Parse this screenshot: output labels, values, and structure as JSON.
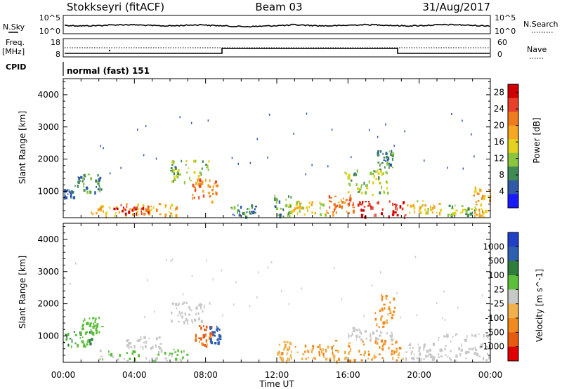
{
  "header": {
    "radar": "Stokkseyri (fitACF)",
    "beam": "Beam 03",
    "date": "31/Aug/2017"
  },
  "panels": {
    "nsky": {
      "label": "N.Sky",
      "ticks": [
        "10^5",
        "10^0"
      ],
      "right_ticks": [
        "10^5",
        "10^0"
      ],
      "right_label": "N.Search"
    },
    "freq": {
      "label_1": "Freq.",
      "label_2": "[MHz]",
      "ticks": [
        "18",
        "8"
      ],
      "right_ticks": [
        "60",
        "0"
      ],
      "right_label": "Nave"
    },
    "cpid": {
      "label": "CPID",
      "value": "normal (fast) 151"
    }
  },
  "colors": {
    "power_scale": [
      "#1a1aff",
      "#2e5aa8",
      "#3f8a55",
      "#8cc63f",
      "#e6d21e",
      "#f5a623",
      "#f07b1a",
      "#e8402a",
      "#d00000"
    ],
    "velocity_scale": [
      "#2040c8",
      "#2f5fb0",
      "#2e7d3a",
      "#5bbf3a",
      "#c8c8c8",
      "#f2b04a",
      "#f08a1c",
      "#e85a10",
      "#e00000"
    ]
  },
  "chart_data": [
    {
      "type": "heatmap",
      "title": "",
      "xlabel": "",
      "ylabel": "Slant Range [km]",
      "x_ticks": [
        "00:00",
        "04:00",
        "08:00",
        "12:00",
        "16:00",
        "20:00",
        "00:00"
      ],
      "y_ticks": [
        "1000",
        "2000",
        "3000",
        "4000"
      ],
      "ylim": [
        180,
        4500
      ],
      "colorbar": {
        "label": "Power [dB]",
        "ticks": [
          "4",
          "8",
          "12",
          "16",
          "20",
          "24",
          "28"
        ],
        "range": [
          0,
          30
        ]
      },
      "patches": [
        {
          "t0": 0.0,
          "t1": 0.6,
          "r0": 830,
          "r1": 1080,
          "value": 6
        },
        {
          "t0": 0.6,
          "t1": 2.2,
          "r0": 1000,
          "r1": 1550,
          "value": 8
        },
        {
          "t0": 1.5,
          "t1": 6.5,
          "r0": 240,
          "r1": 650,
          "value": 18
        },
        {
          "t0": 2.8,
          "t1": 4.8,
          "r0": 330,
          "r1": 620,
          "value": 26
        },
        {
          "t0": 6.0,
          "t1": 8.2,
          "r0": 1300,
          "r1": 2000,
          "value": 12
        },
        {
          "t0": 7.2,
          "t1": 8.8,
          "r0": 700,
          "r1": 1400,
          "value": 21
        },
        {
          "t0": 9.4,
          "t1": 10.8,
          "r0": 240,
          "r1": 600,
          "value": 8
        },
        {
          "t0": 11.8,
          "t1": 12.8,
          "r0": 240,
          "r1": 900,
          "value": 10
        },
        {
          "t0": 12.6,
          "t1": 14.8,
          "r0": 300,
          "r1": 750,
          "value": 15
        },
        {
          "t0": 14.8,
          "t1": 16.5,
          "r0": 320,
          "r1": 900,
          "value": 22
        },
        {
          "t0": 16.5,
          "t1": 19.2,
          "r0": 230,
          "r1": 720,
          "value": 27
        },
        {
          "t0": 15.8,
          "t1": 18.2,
          "r0": 900,
          "r1": 1700,
          "value": 12
        },
        {
          "t0": 17.5,
          "t1": 18.5,
          "r0": 1700,
          "r1": 2300,
          "value": 8
        },
        {
          "t0": 19.3,
          "t1": 21.2,
          "r0": 350,
          "r1": 750,
          "value": 16
        },
        {
          "t0": 21.5,
          "t1": 23.2,
          "r0": 260,
          "r1": 600,
          "value": 12
        },
        {
          "t0": 23.0,
          "t1": 24.0,
          "r0": 230,
          "r1": 1200,
          "value": 18
        }
      ]
    },
    {
      "type": "heatmap",
      "title": "",
      "xlabel": "Time UT",
      "ylabel": "Slant Range [km]",
      "x_ticks": [
        "00:00",
        "04:00",
        "08:00",
        "12:00",
        "16:00",
        "20:00",
        "00:00"
      ],
      "y_ticks": [
        "1000",
        "2000",
        "3000",
        "4000"
      ],
      "ylim": [
        180,
        4500
      ],
      "colorbar": {
        "label": "Velocity [m s^-1]",
        "ticks": [
          "1000",
          "500",
          "100",
          "25",
          "-25",
          "-100",
          "-500",
          "-1000"
        ],
        "range": [
          -1000,
          1000
        ]
      },
      "patches": [
        {
          "t0": 0.0,
          "t1": 1.6,
          "r0": 700,
          "r1": 1150,
          "value": 300
        },
        {
          "t0": 1.0,
          "t1": 2.2,
          "r0": 1100,
          "r1": 1600,
          "value": 200
        },
        {
          "t0": 2.0,
          "t1": 7.0,
          "r0": 250,
          "r1": 620,
          "value": 120
        },
        {
          "t0": 3.5,
          "t1": 5.5,
          "r0": 650,
          "r1": 1000,
          "value": 0
        },
        {
          "t0": 6.0,
          "t1": 8.2,
          "r0": 1400,
          "r1": 2100,
          "value": 0
        },
        {
          "t0": 7.3,
          "t1": 8.4,
          "r0": 700,
          "r1": 1350,
          "value": -600
        },
        {
          "t0": 8.2,
          "t1": 8.8,
          "r0": 800,
          "r1": 1400,
          "value": 700
        },
        {
          "t0": 12.0,
          "t1": 12.8,
          "r0": 240,
          "r1": 900,
          "value": -250
        },
        {
          "t0": 13.0,
          "t1": 15.6,
          "r0": 300,
          "r1": 750,
          "value": -300
        },
        {
          "t0": 15.0,
          "t1": 19.1,
          "r0": 240,
          "r1": 900,
          "value": -350
        },
        {
          "t0": 16.0,
          "t1": 18.5,
          "r0": 900,
          "r1": 1300,
          "value": 0
        },
        {
          "t0": 17.5,
          "t1": 18.6,
          "r0": 1300,
          "r1": 2300,
          "value": -400
        },
        {
          "t0": 19.2,
          "t1": 20.8,
          "r0": 300,
          "r1": 800,
          "value": 0
        },
        {
          "t0": 21.0,
          "t1": 24.0,
          "r0": 260,
          "r1": 1100,
          "value": 0
        }
      ]
    }
  ]
}
